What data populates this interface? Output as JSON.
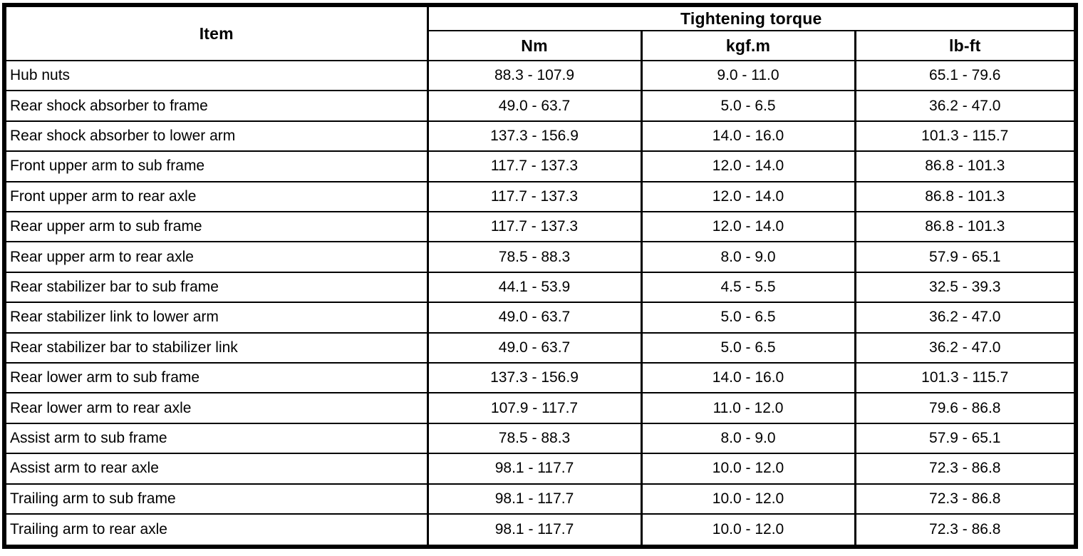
{
  "table": {
    "colors": {
      "border": "#000000",
      "text": "#000000",
      "background": "#ffffff"
    },
    "headers": {
      "item": "Item",
      "group": "Tightening torque",
      "units": [
        "Nm",
        "kgf.m",
        "lb-ft"
      ]
    },
    "rows": [
      {
        "item": "Hub nuts",
        "nm": "88.3 - 107.9",
        "kgfm": "9.0 - 11.0",
        "lbft": "65.1 - 79.6"
      },
      {
        "item": "Rear shock absorber to frame",
        "nm": "49.0 - 63.7",
        "kgfm": "5.0 - 6.5",
        "lbft": "36.2 - 47.0"
      },
      {
        "item": "Rear shock absorber to lower arm",
        "nm": "137.3 - 156.9",
        "kgfm": "14.0 - 16.0",
        "lbft": "101.3 - 115.7"
      },
      {
        "item": "Front upper arm to sub frame",
        "nm": "117.7 - 137.3",
        "kgfm": "12.0 - 14.0",
        "lbft": "86.8 - 101.3"
      },
      {
        "item": "Front upper arm to rear axle",
        "nm": "117.7 - 137.3",
        "kgfm": "12.0 - 14.0",
        "lbft": "86.8 - 101.3"
      },
      {
        "item": "Rear upper arm to sub frame",
        "nm": "117.7 - 137.3",
        "kgfm": "12.0 - 14.0",
        "lbft": "86.8 - 101.3"
      },
      {
        "item": "Rear upper arm to rear axle",
        "nm": "78.5 - 88.3",
        "kgfm": "8.0 - 9.0",
        "lbft": "57.9 - 65.1"
      },
      {
        "item": "Rear stabilizer bar to sub frame",
        "nm": "44.1 - 53.9",
        "kgfm": "4.5 - 5.5",
        "lbft": "32.5 - 39.3"
      },
      {
        "item": "Rear stabilizer link to lower arm",
        "nm": "49.0 - 63.7",
        "kgfm": "5.0 - 6.5",
        "lbft": "36.2 - 47.0"
      },
      {
        "item": "Rear stabilizer bar to stabilizer link",
        "nm": "49.0 - 63.7",
        "kgfm": "5.0 - 6.5",
        "lbft": "36.2 - 47.0"
      },
      {
        "item": "Rear lower arm to sub frame",
        "nm": "137.3 - 156.9",
        "kgfm": "14.0 - 16.0",
        "lbft": "101.3 - 115.7"
      },
      {
        "item": "Rear lower arm to rear axle",
        "nm": "107.9 - 117.7",
        "kgfm": "11.0 - 12.0",
        "lbft": "79.6 - 86.8"
      },
      {
        "item": "Assist arm to sub frame",
        "nm": "78.5 - 88.3",
        "kgfm": "8.0 - 9.0",
        "lbft": "57.9 - 65.1"
      },
      {
        "item": "Assist arm to rear axle",
        "nm": "98.1 - 117.7",
        "kgfm": "10.0 - 12.0",
        "lbft": "72.3 - 86.8"
      },
      {
        "item": "Trailing arm to sub frame",
        "nm": "98.1 - 117.7",
        "kgfm": "10.0 - 12.0",
        "lbft": "72.3 - 86.8"
      },
      {
        "item": "Trailing arm to rear axle",
        "nm": "98.1 - 117.7",
        "kgfm": "10.0 - 12.0",
        "lbft": "72.3 - 86.8"
      }
    ]
  }
}
